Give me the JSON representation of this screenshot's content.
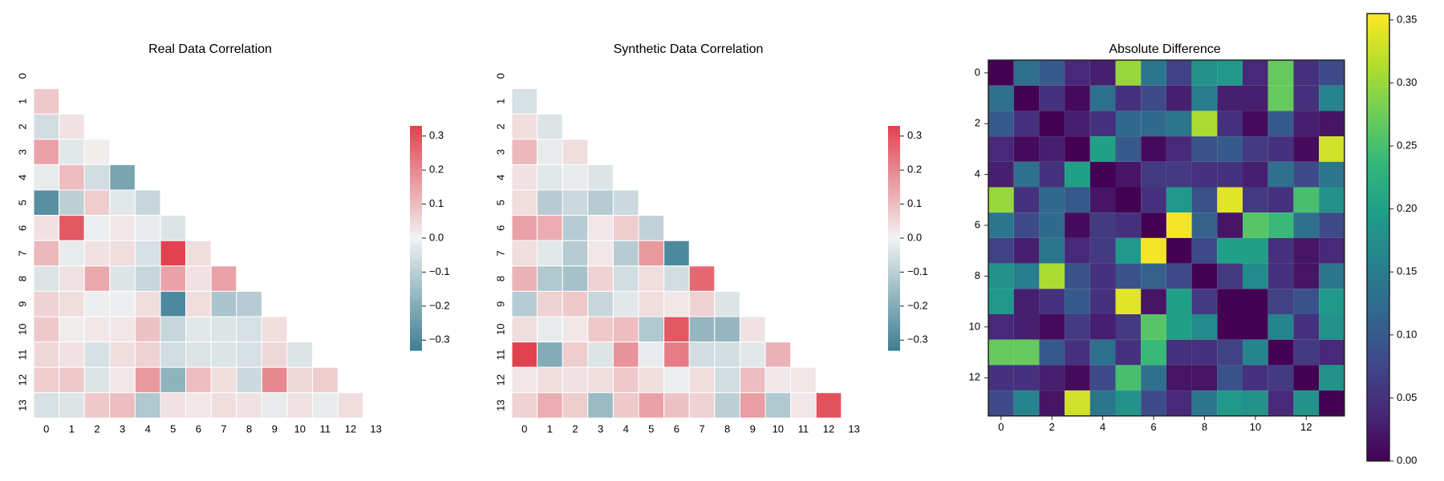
{
  "chart_data": [
    {
      "type": "heatmap",
      "title": "Real Data Correlation",
      "mask": "upper-triangle-and-diagonal",
      "x_ticks": [
        "0",
        "1",
        "2",
        "3",
        "4",
        "5",
        "6",
        "7",
        "8",
        "9",
        "10",
        "11",
        "12",
        "13"
      ],
      "y_ticks": [
        "0",
        "1",
        "2",
        "3",
        "4",
        "5",
        "6",
        "7",
        "8",
        "9",
        "10",
        "11",
        "12",
        "13"
      ],
      "colorbar": {
        "min": -0.33,
        "max": 0.33,
        "ticks": [
          -0.3,
          -0.2,
          -0.1,
          0.0,
          0.1,
          0.2,
          0.3
        ],
        "tick_labels": [
          "−0.3",
          "−0.2",
          "−0.1",
          "0.0",
          "0.1",
          "0.2",
          "0.3"
        ]
      },
      "colormap": {
        "low": "#3d7e93",
        "mid": "#f2f2f2",
        "high": "#e0434f"
      },
      "values": [
        [],
        [
          0.08
        ],
        [
          -0.06,
          0.03
        ],
        [
          0.15,
          -0.03,
          0.01
        ],
        [
          -0.02,
          0.1,
          -0.06,
          -0.22
        ],
        [
          -0.28,
          -0.1,
          0.07,
          -0.03,
          -0.08
        ],
        [
          0.03,
          0.29,
          -0.01,
          0.02,
          -0.02,
          -0.04
        ],
        [
          0.11,
          -0.02,
          0.03,
          0.04,
          -0.05,
          0.33,
          0.04
        ],
        [
          -0.04,
          0.03,
          0.14,
          -0.04,
          -0.08,
          0.15,
          0.03,
          0.15
        ],
        [
          0.06,
          0.04,
          -0.01,
          -0.01,
          0.04,
          -0.3,
          0.04,
          -0.13,
          -0.11
        ],
        [
          0.08,
          0.01,
          0.02,
          0.02,
          0.09,
          -0.08,
          -0.03,
          -0.04,
          -0.05,
          0.04
        ],
        [
          0.05,
          0.03,
          -0.05,
          0.04,
          0.06,
          -0.06,
          -0.04,
          -0.04,
          -0.05,
          0.05,
          -0.04
        ],
        [
          0.07,
          0.08,
          -0.04,
          0.02,
          0.17,
          -0.18,
          0.1,
          0.04,
          -0.07,
          0.2,
          0.05,
          0.07
        ],
        [
          -0.05,
          -0.04,
          0.08,
          0.1,
          -0.12,
          0.03,
          0.02,
          0.04,
          0.03,
          -0.02,
          0.03,
          -0.02,
          0.04
        ]
      ]
    },
    {
      "type": "heatmap",
      "title": "Synthetic Data Correlation",
      "mask": "upper-triangle-and-diagonal",
      "x_ticks": [
        "0",
        "1",
        "2",
        "3",
        "4",
        "5",
        "6",
        "7",
        "8",
        "9",
        "10",
        "11",
        "12",
        "13"
      ],
      "y_ticks": [
        "0",
        "1",
        "2",
        "3",
        "4",
        "5",
        "6",
        "7",
        "8",
        "9",
        "10",
        "11",
        "12",
        "13"
      ],
      "colorbar": {
        "min": -0.33,
        "max": 0.33,
        "ticks": [
          -0.3,
          -0.2,
          -0.1,
          0.0,
          0.1,
          0.2,
          0.3
        ],
        "tick_labels": [
          "−0.3",
          "−0.2",
          "−0.1",
          "0.0",
          "0.1",
          "0.2",
          "0.3"
        ]
      },
      "colormap": {
        "low": "#3d7e93",
        "mid": "#f2f2f2",
        "high": "#e0434f"
      },
      "values": [
        [],
        [
          -0.05
        ],
        [
          0.04,
          -0.04
        ],
        [
          0.11,
          -0.02,
          0.04
        ],
        [
          0.03,
          -0.03,
          -0.02,
          -0.04
        ],
        [
          0.04,
          -0.11,
          -0.07,
          -0.11,
          -0.07
        ],
        [
          0.15,
          0.13,
          -0.11,
          0.02,
          0.07,
          -0.09
        ],
        [
          0.04,
          -0.03,
          -0.11,
          0.02,
          -0.11,
          0.17,
          -0.3
        ],
        [
          0.12,
          -0.12,
          -0.14,
          0.06,
          -0.06,
          0.04,
          -0.06,
          0.26
        ],
        [
          -0.11,
          0.06,
          0.08,
          -0.08,
          -0.03,
          0.04,
          0.02,
          0.06,
          -0.04
        ],
        [
          0.04,
          -0.02,
          0.02,
          0.08,
          0.1,
          -0.12,
          0.29,
          -0.17,
          -0.17,
          0.03
        ],
        [
          0.33,
          -0.2,
          0.07,
          -0.04,
          0.18,
          -0.02,
          0.22,
          -0.06,
          -0.06,
          -0.03,
          0.12
        ],
        [
          0.02,
          0.04,
          0.03,
          0.04,
          0.08,
          0.04,
          -0.01,
          0.04,
          -0.06,
          0.1,
          0.02,
          0.02
        ],
        [
          0.06,
          0.13,
          0.07,
          -0.16,
          0.08,
          0.15,
          0.09,
          0.06,
          -0.1,
          0.16,
          -0.12,
          0.02,
          0.3
        ]
      ]
    },
    {
      "type": "heatmap",
      "title": "Absolute Difference",
      "x_ticks": [
        "0",
        "2",
        "4",
        "6",
        "8",
        "10",
        "12"
      ],
      "x_tick_positions": [
        0,
        2,
        4,
        6,
        8,
        10,
        12
      ],
      "y_ticks": [
        "0",
        "2",
        "4",
        "6",
        "8",
        "10",
        "12"
      ],
      "y_tick_positions": [
        0,
        2,
        4,
        6,
        8,
        10,
        12
      ],
      "colormap": "viridis",
      "colorbar": {
        "min": 0.0,
        "max": 0.355,
        "ticks": [
          0.0,
          0.05,
          0.1,
          0.15,
          0.2,
          0.25,
          0.3,
          0.35
        ],
        "tick_labels": [
          "0.00",
          "0.05",
          "0.10",
          "0.15",
          "0.20",
          "0.25",
          "0.30",
          "0.35"
        ]
      },
      "values": [
        [
          0.0,
          0.13,
          0.1,
          0.04,
          0.03,
          0.3,
          0.14,
          0.07,
          0.18,
          0.19,
          0.04,
          0.27,
          0.05,
          0.08
        ],
        [
          0.13,
          0.0,
          0.05,
          0.01,
          0.13,
          0.05,
          0.08,
          0.03,
          0.15,
          0.03,
          0.03,
          0.27,
          0.05,
          0.16
        ],
        [
          0.1,
          0.05,
          0.0,
          0.03,
          0.05,
          0.12,
          0.12,
          0.14,
          0.31,
          0.05,
          0.01,
          0.1,
          0.03,
          0.02
        ],
        [
          0.04,
          0.01,
          0.03,
          0.0,
          0.2,
          0.1,
          0.01,
          0.04,
          0.09,
          0.1,
          0.06,
          0.05,
          0.01,
          0.33
        ],
        [
          0.03,
          0.13,
          0.05,
          0.2,
          0.0,
          0.02,
          0.06,
          0.06,
          0.05,
          0.05,
          0.03,
          0.13,
          0.08,
          0.14
        ],
        [
          0.3,
          0.05,
          0.12,
          0.1,
          0.02,
          0.0,
          0.05,
          0.19,
          0.09,
          0.34,
          0.06,
          0.05,
          0.25,
          0.18
        ],
        [
          0.14,
          0.08,
          0.12,
          0.01,
          0.06,
          0.05,
          0.0,
          0.35,
          0.11,
          0.02,
          0.26,
          0.24,
          0.13,
          0.08
        ],
        [
          0.07,
          0.03,
          0.14,
          0.04,
          0.06,
          0.19,
          0.35,
          0.0,
          0.08,
          0.2,
          0.2,
          0.05,
          0.02,
          0.04
        ],
        [
          0.18,
          0.15,
          0.31,
          0.09,
          0.05,
          0.09,
          0.11,
          0.08,
          0.0,
          0.06,
          0.17,
          0.05,
          0.02,
          0.14
        ],
        [
          0.19,
          0.03,
          0.05,
          0.1,
          0.05,
          0.34,
          0.02,
          0.2,
          0.06,
          0.0,
          0.0,
          0.07,
          0.09,
          0.19
        ],
        [
          0.04,
          0.03,
          0.01,
          0.06,
          0.03,
          0.06,
          0.26,
          0.2,
          0.17,
          0.0,
          0.0,
          0.16,
          0.05,
          0.18
        ],
        [
          0.27,
          0.27,
          0.1,
          0.05,
          0.13,
          0.05,
          0.24,
          0.05,
          0.05,
          0.07,
          0.16,
          0.0,
          0.06,
          0.04
        ],
        [
          0.05,
          0.05,
          0.03,
          0.01,
          0.08,
          0.25,
          0.13,
          0.02,
          0.02,
          0.09,
          0.05,
          0.06,
          0.0,
          0.18
        ],
        [
          0.08,
          0.16,
          0.02,
          0.33,
          0.14,
          0.18,
          0.08,
          0.04,
          0.14,
          0.19,
          0.18,
          0.04,
          0.18,
          0.0
        ]
      ]
    }
  ]
}
